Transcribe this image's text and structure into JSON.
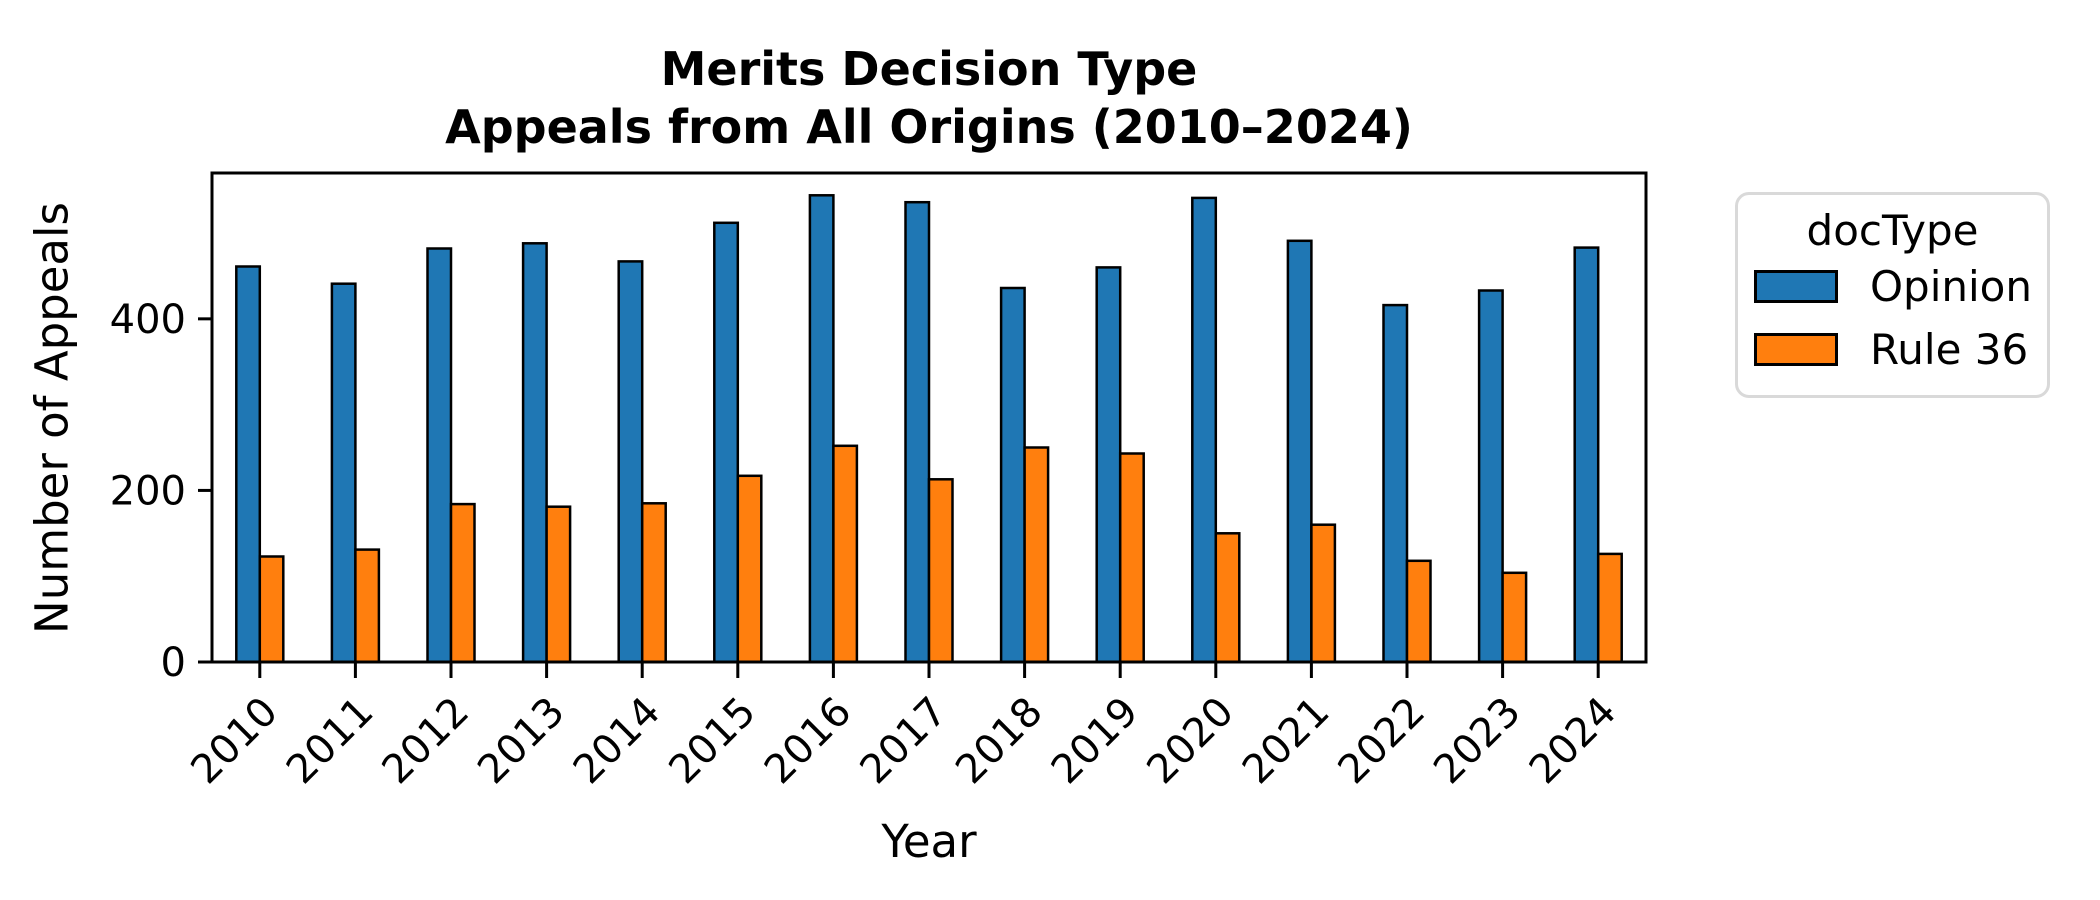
{
  "title": {
    "line1": "Merits Decision Type",
    "line2": "Appeals from All Origins (2010–2024)"
  },
  "axes": {
    "xlabel": "Year",
    "ylabel": "Number of Appeals"
  },
  "legend": {
    "title": "docType",
    "entries": [
      {
        "label": "Opinion",
        "color": "#1f77b4"
      },
      {
        "label": "Rule 36",
        "color": "#ff7f0e"
      }
    ]
  },
  "chart_data": {
    "type": "bar",
    "title": "Merits Decision Type\nAppeals from All Origins (2010–2024)",
    "xlabel": "Year",
    "ylabel": "Number of Appeals",
    "categories": [
      "2010",
      "2011",
      "2012",
      "2013",
      "2014",
      "2015",
      "2016",
      "2017",
      "2018",
      "2019",
      "2020",
      "2021",
      "2022",
      "2023",
      "2024"
    ],
    "series": [
      {
        "name": "Opinion",
        "color": "#1f77b4",
        "values": [
          461,
          441,
          482,
          488,
          467,
          512,
          544,
          536,
          436,
          460,
          541,
          491,
          416,
          433,
          483
        ]
      },
      {
        "name": "Rule 36",
        "color": "#ff7f0e",
        "values": [
          123,
          131,
          184,
          181,
          185,
          217,
          252,
          213,
          250,
          243,
          150,
          160,
          118,
          104,
          126
        ]
      }
    ],
    "ylim": [
      0,
      570
    ],
    "yticks": [
      0,
      200,
      400
    ],
    "grid": false,
    "bar_edge_color": "#000000",
    "legend_title": "docType",
    "legend_position": "right",
    "background": "#ffffff"
  }
}
